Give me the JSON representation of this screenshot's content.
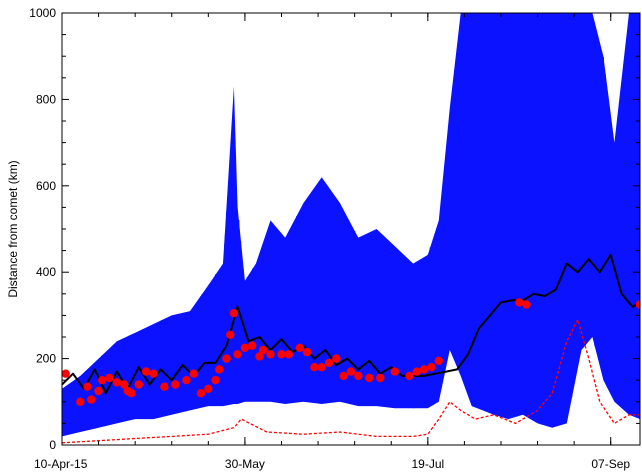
{
  "chart_data": {
    "type": "line",
    "title": "",
    "xlabel": "",
    "ylabel": "Distance from comet (km)",
    "ylim": [
      0,
      1000
    ],
    "xlim": [
      "2015-04-10",
      "2015-09-15"
    ],
    "yticks": [
      0,
      200,
      400,
      600,
      800,
      1000
    ],
    "xticks": [
      {
        "date": "2015-04-10",
        "label": "10-Apr-15"
      },
      {
        "date": "2015-05-30",
        "label": "30-May"
      },
      {
        "date": "2015-07-19",
        "label": "19-Jul"
      },
      {
        "date": "2015-09-07",
        "label": "07-Sep"
      }
    ],
    "grid": false,
    "legend": "none",
    "colors": {
      "range_band": "#0a12ff",
      "median_line": "#000000",
      "markers": "#ff0000",
      "lower_line": "#ff0000"
    },
    "series": [
      {
        "style": "filled-band",
        "color": "#0a12ff",
        "x": [
          "2015-04-10",
          "2015-04-15",
          "2015-04-20",
          "2015-04-25",
          "2015-04-30",
          "2015-05-05",
          "2015-05-10",
          "2015-05-15",
          "2015-05-20",
          "2015-05-24",
          "2015-05-27",
          "2015-05-28",
          "2015-05-30",
          "2015-06-02",
          "2015-06-06",
          "2015-06-10",
          "2015-06-15",
          "2015-06-20",
          "2015-06-25",
          "2015-06-30",
          "2015-07-05",
          "2015-07-10",
          "2015-07-15",
          "2015-07-19",
          "2015-07-22",
          "2015-07-25",
          "2015-07-28",
          "2015-07-31",
          "2015-08-03",
          "2015-08-06",
          "2015-08-10",
          "2015-08-14",
          "2015-08-18",
          "2015-08-22",
          "2015-08-26",
          "2015-08-30",
          "2015-09-02",
          "2015-09-05",
          "2015-09-08",
          "2015-09-12",
          "2015-09-15"
        ],
        "high": [
          130,
          160,
          200,
          240,
          260,
          280,
          300,
          310,
          370,
          420,
          830,
          550,
          380,
          420,
          520,
          480,
          560,
          620,
          560,
          480,
          500,
          460,
          420,
          440,
          520,
          780,
          1000,
          1000,
          1000,
          1000,
          1000,
          1000,
          1000,
          1000,
          1000,
          1000,
          1000,
          900,
          700,
          1000,
          1000
        ],
        "low": [
          20,
          30,
          40,
          50,
          60,
          60,
          70,
          80,
          90,
          90,
          95,
          95,
          100,
          100,
          100,
          95,
          100,
          95,
          100,
          90,
          90,
          85,
          85,
          85,
          100,
          220,
          160,
          90,
          80,
          70,
          60,
          70,
          50,
          40,
          50,
          220,
          250,
          150,
          100,
          70,
          60
        ]
      },
      {
        "style": "line",
        "color": "#000000",
        "x": [
          "2015-04-10",
          "2015-04-13",
          "2015-04-16",
          "2015-04-19",
          "2015-04-22",
          "2015-04-25",
          "2015-04-28",
          "2015-05-01",
          "2015-05-04",
          "2015-05-07",
          "2015-05-10",
          "2015-05-13",
          "2015-05-16",
          "2015-05-19",
          "2015-05-22",
          "2015-05-25",
          "2015-05-28",
          "2015-05-31",
          "2015-06-03",
          "2015-06-06",
          "2015-06-09",
          "2015-06-12",
          "2015-06-15",
          "2015-06-18",
          "2015-06-21",
          "2015-06-24",
          "2015-06-27",
          "2015-06-30",
          "2015-07-03",
          "2015-07-06",
          "2015-07-09",
          "2015-07-12",
          "2015-07-15",
          "2015-07-18",
          "2015-07-21",
          "2015-07-24",
          "2015-07-27",
          "2015-07-30",
          "2015-08-02",
          "2015-08-05",
          "2015-08-08",
          "2015-08-11",
          "2015-08-14",
          "2015-08-17",
          "2015-08-20",
          "2015-08-23",
          "2015-08-26",
          "2015-08-29",
          "2015-09-01",
          "2015-09-04",
          "2015-09-07",
          "2015-09-10",
          "2015-09-13",
          "2015-09-15"
        ],
        "y": [
          140,
          165,
          130,
          175,
          120,
          170,
          130,
          180,
          140,
          175,
          150,
          185,
          160,
          190,
          190,
          230,
          320,
          240,
          250,
          220,
          245,
          215,
          230,
          200,
          220,
          185,
          200,
          175,
          195,
          165,
          180,
          160,
          160,
          160,
          165,
          170,
          175,
          210,
          270,
          300,
          330,
          335,
          335,
          350,
          345,
          360,
          420,
          400,
          430,
          400,
          440,
          350,
          320,
          330
        ]
      },
      {
        "style": "dashed-line",
        "color": "#ff0000",
        "x": [
          "2015-04-10",
          "2015-04-20",
          "2015-04-30",
          "2015-05-10",
          "2015-05-20",
          "2015-05-27",
          "2015-05-29",
          "2015-06-05",
          "2015-06-15",
          "2015-06-25",
          "2015-07-05",
          "2015-07-15",
          "2015-07-19",
          "2015-07-22",
          "2015-07-25",
          "2015-07-28",
          "2015-08-01",
          "2015-08-06",
          "2015-08-12",
          "2015-08-18",
          "2015-08-22",
          "2015-08-26",
          "2015-08-29",
          "2015-09-01",
          "2015-09-04",
          "2015-09-08",
          "2015-09-12",
          "2015-09-15"
        ],
        "y": [
          5,
          10,
          15,
          20,
          25,
          40,
          60,
          30,
          25,
          30,
          20,
          20,
          25,
          60,
          100,
          80,
          60,
          70,
          50,
          80,
          120,
          240,
          290,
          200,
          100,
          50,
          70,
          70
        ]
      },
      {
        "style": "markers",
        "color": "#ff0000",
        "x": [
          "2015-04-11",
          "2015-04-15",
          "2015-04-17",
          "2015-04-18",
          "2015-04-20",
          "2015-04-21",
          "2015-04-23",
          "2015-04-25",
          "2015-04-27",
          "2015-04-28",
          "2015-04-29",
          "2015-05-01",
          "2015-05-03",
          "2015-05-05",
          "2015-05-08",
          "2015-05-11",
          "2015-05-14",
          "2015-05-16",
          "2015-05-18",
          "2015-05-20",
          "2015-05-22",
          "2015-05-23",
          "2015-05-25",
          "2015-05-26",
          "2015-05-27",
          "2015-05-28",
          "2015-05-30",
          "2015-06-01",
          "2015-06-03",
          "2015-06-04",
          "2015-06-06",
          "2015-06-09",
          "2015-06-11",
          "2015-06-14",
          "2015-06-16",
          "2015-06-18",
          "2015-06-20",
          "2015-06-22",
          "2015-06-24",
          "2015-06-26",
          "2015-06-28",
          "2015-06-30",
          "2015-07-03",
          "2015-07-06",
          "2015-07-10",
          "2015-07-14",
          "2015-07-16",
          "2015-07-18",
          "2015-07-20",
          "2015-07-22",
          "2015-08-13",
          "2015-08-15",
          "2015-09-15"
        ],
        "y": [
          165,
          100,
          135,
          105,
          125,
          150,
          155,
          145,
          140,
          125,
          120,
          140,
          170,
          165,
          135,
          140,
          150,
          165,
          120,
          130,
          150,
          175,
          200,
          255,
          305,
          210,
          225,
          230,
          205,
          220,
          210,
          210,
          210,
          225,
          215,
          180,
          180,
          190,
          200,
          160,
          170,
          160,
          155,
          155,
          170,
          160,
          170,
          175,
          180,
          195,
          330,
          325,
          325
        ]
      }
    ]
  }
}
